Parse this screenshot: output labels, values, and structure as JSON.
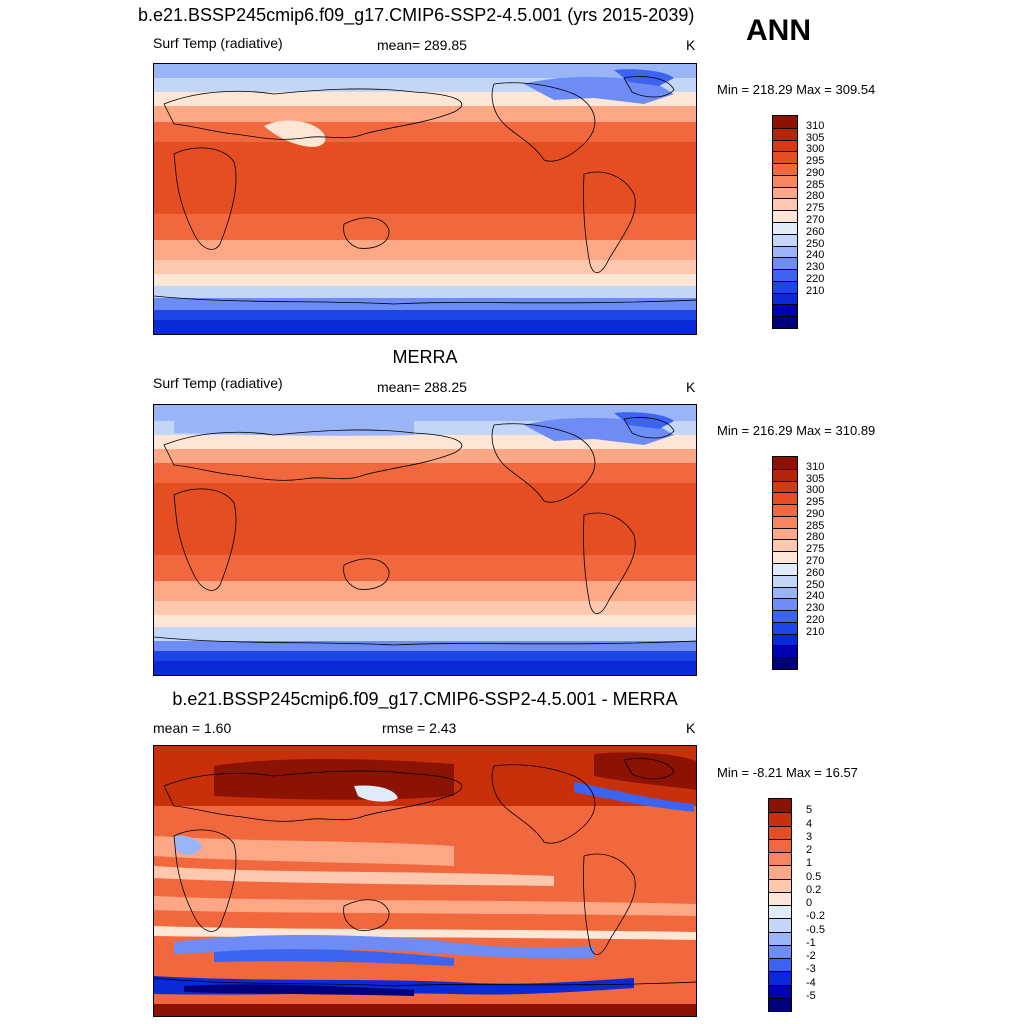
{
  "season": "ANN",
  "colors": {
    "temp_palette": [
      "#00007f",
      "#0000b4",
      "#0a2ad8",
      "#1e46e6",
      "#3c64f0",
      "#6e8cf6",
      "#9ab4f8",
      "#c4d6f8",
      "#e0ecfa",
      "#fde6d6",
      "#fdc8ae",
      "#fca886",
      "#f78660",
      "#f1683e",
      "#e54e22",
      "#d63a10",
      "#b3260a",
      "#8c1204"
    ],
    "diff_palette": [
      "#00007f",
      "#0000b4",
      "#0a2ad8",
      "#3c64f0",
      "#6e8cf6",
      "#9ab4f8",
      "#c4d6f8",
      "#e0ecfa",
      "#fde6d6",
      "#fdc8ae",
      "#fca886",
      "#f78660",
      "#f1683e",
      "#e54e22",
      "#c8300c",
      "#8c1204"
    ]
  },
  "panels": [
    {
      "title": "b.e21.BSSP245cmip6.f09_g17.CMIP6-SSP2-4.5.001 (yrs 2015-2039)",
      "left_label": "Surf Temp (radiative)",
      "center_label": "mean= 289.85",
      "units": "K",
      "minmax": "Min = 218.29 Max = 309.54",
      "colorbar_labels": [
        "310",
        "305",
        "300",
        "295",
        "290",
        "285",
        "280",
        "275",
        "270",
        "260",
        "250",
        "240",
        "230",
        "220",
        "210"
      ]
    },
    {
      "title": "MERRA",
      "left_label": "Surf Temp (radiative)",
      "center_label": "mean= 288.25",
      "units": "K",
      "minmax": "Min = 216.29 Max = 310.89",
      "colorbar_labels": [
        "310",
        "305",
        "300",
        "295",
        "290",
        "285",
        "280",
        "275",
        "270",
        "260",
        "250",
        "240",
        "230",
        "220",
        "210"
      ]
    },
    {
      "title": "b.e21.BSSP245cmip6.f09_g17.CMIP6-SSP2-4.5.001 - MERRA",
      "left_label": "mean =   1.60",
      "center_label": "rmse =   2.43",
      "units": "K",
      "minmax": "Min =  -8.21 Max =  16.57",
      "colorbar_labels": [
        "5",
        "4",
        "3",
        "2",
        "1",
        "0.5",
        "0.2",
        "0",
        "-0.2",
        "-0.5",
        "-1",
        "-2",
        "-3",
        "-4",
        "-5"
      ]
    }
  ]
}
